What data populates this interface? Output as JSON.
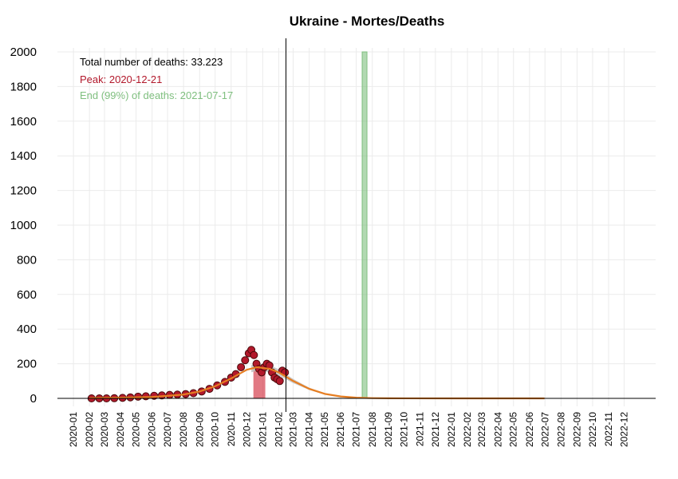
{
  "chart_data": {
    "type": "scatter",
    "title": "Ukraine - Mortes/Deaths",
    "xlabel": "",
    "ylabel": "",
    "ylim": [
      0,
      2000
    ],
    "yticks": [
      0,
      200,
      400,
      600,
      800,
      1000,
      1200,
      1400,
      1600,
      1800,
      2000
    ],
    "xlim": [
      "2019-12-01",
      "2023-01-31"
    ],
    "xticks": [
      "2020-01",
      "2020-02",
      "2020-03",
      "2020-04",
      "2020-05",
      "2020-06",
      "2020-07",
      "2020-08",
      "2020-09",
      "2020-10",
      "2020-11",
      "2020-12",
      "2021-01",
      "2021-02",
      "2021-03",
      "2021-04",
      "2021-05",
      "2021-06",
      "2021-07",
      "2021-08",
      "2021-09",
      "2021-10",
      "2021-11",
      "2021-12",
      "2022-01",
      "2022-02",
      "2022-03",
      "2022-04",
      "2022-05",
      "2022-06",
      "2022-07",
      "2022-08",
      "2022-09",
      "2022-10",
      "2022-11",
      "2022-12"
    ],
    "grid": true,
    "annotations": {
      "total": "Total number of deaths: 33.223",
      "peak": "Peak: 2020-12-21",
      "end": "End (99%) of deaths: 2021-07-17"
    },
    "today_line": "2021-02-15",
    "peak_date": "2020-12-21",
    "end_date": "2021-07-17",
    "colors": {
      "points_fill": "#b2182b",
      "points_stroke": "#4a0a0a",
      "fit_line": "#e67e22",
      "confidence_band": "#bdbdbd",
      "peak_band": "#d6404e",
      "end_band": "#7fbf7f",
      "grid": "#ebebeb"
    },
    "observed_daily_deaths": {
      "x": [
        "2020-02-05",
        "2020-02-20",
        "2020-03-05",
        "2020-03-20",
        "2020-04-05",
        "2020-04-20",
        "2020-05-05",
        "2020-05-20",
        "2020-06-05",
        "2020-06-20",
        "2020-07-05",
        "2020-07-20",
        "2020-08-05",
        "2020-08-20",
        "2020-09-05",
        "2020-09-20",
        "2020-10-05",
        "2020-10-20",
        "2020-11-01",
        "2020-11-10",
        "2020-11-20",
        "2020-11-28",
        "2020-12-05",
        "2020-12-10",
        "2020-12-15",
        "2020-12-20",
        "2020-12-25",
        "2020-12-30",
        "2021-01-04",
        "2021-01-09",
        "2021-01-14",
        "2021-01-19",
        "2021-01-24",
        "2021-01-29",
        "2021-02-03",
        "2021-02-08",
        "2021-02-13"
      ],
      "y": [
        0,
        0,
        0,
        1,
        3,
        6,
        10,
        12,
        15,
        17,
        20,
        22,
        25,
        30,
        40,
        55,
        75,
        95,
        120,
        140,
        180,
        220,
        260,
        280,
        250,
        200,
        170,
        150,
        180,
        200,
        190,
        150,
        120,
        110,
        100,
        160,
        150
      ]
    },
    "fitted_curve": {
      "x": [
        "2020-02-01",
        "2020-04-01",
        "2020-06-01",
        "2020-08-01",
        "2020-09-01",
        "2020-10-01",
        "2020-11-01",
        "2020-12-01",
        "2020-12-21",
        "2021-01-15",
        "2021-02-01",
        "2021-03-01",
        "2021-04-01",
        "2021-05-01",
        "2021-06-01",
        "2021-07-01",
        "2021-08-01",
        "2021-09-01",
        "2022-01-01",
        "2022-06-30"
      ],
      "y": [
        2,
        4,
        8,
        22,
        40,
        70,
        115,
        165,
        180,
        170,
        150,
        100,
        55,
        26,
        11,
        4,
        1.5,
        0.5,
        0,
        0
      ]
    }
  }
}
